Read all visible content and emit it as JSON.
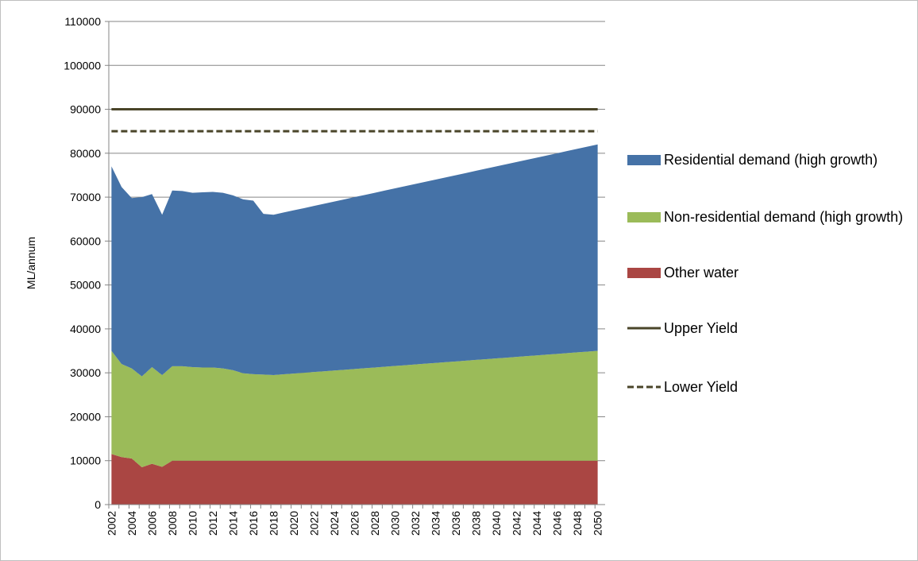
{
  "chart_data": {
    "type": "area",
    "y_label": "ML/annum",
    "categories": [
      "2002",
      null,
      "2004",
      null,
      "2006",
      null,
      "2008",
      null,
      "2010",
      null,
      "2012",
      null,
      "2014",
      null,
      "2016",
      null,
      "2018",
      null,
      "2020",
      null,
      "2022",
      null,
      "2024",
      null,
      "2026",
      null,
      "2028",
      null,
      "2030",
      null,
      "2032",
      null,
      "2034",
      null,
      "2036",
      null,
      "2038",
      null,
      "2040",
      null,
      "2042",
      null,
      "2044",
      null,
      "2046",
      null,
      "2048",
      null,
      "2050"
    ],
    "series": [
      {
        "name": "Other water",
        "color": "#aa4643",
        "values": [
          11500,
          10800,
          10500,
          8500,
          9300,
          8600,
          10000,
          10000,
          10000,
          10000,
          10000,
          10000,
          10000,
          10000,
          10000,
          10000,
          10000,
          10000,
          10000,
          10000,
          10000,
          10000,
          10000,
          10000,
          10000,
          10000,
          10000,
          10000,
          10000,
          10000,
          10000,
          10000,
          10000,
          10000,
          10000,
          10000,
          10000,
          10000,
          10000,
          10000,
          10000,
          10000,
          10000,
          10000,
          10000,
          10000,
          10000,
          10000,
          10000
        ]
      },
      {
        "name": "Non-residential demand (high growth)",
        "color": "#9bbb59",
        "values": [
          23500,
          21200,
          20500,
          20700,
          22000,
          20900,
          21500,
          21500,
          21300,
          21200,
          21200,
          21000,
          20600,
          19900,
          19700,
          19600,
          19500,
          19670,
          19840,
          20010,
          20190,
          20360,
          20530,
          20700,
          20880,
          21050,
          21220,
          21390,
          21560,
          21730,
          21910,
          22080,
          22250,
          22420,
          22590,
          22770,
          22940,
          23110,
          23280,
          23450,
          23630,
          23800,
          23970,
          24140,
          24310,
          24480,
          24660,
          24830,
          25000
        ]
      },
      {
        "name": "Residential demand (high growth)",
        "color": "#4572a7",
        "values": [
          42000,
          40300,
          38800,
          40800,
          39400,
          36500,
          40000,
          39900,
          39700,
          39900,
          40000,
          40000,
          39800,
          39600,
          39500,
          36600,
          36500,
          36830,
          37160,
          37480,
          37810,
          38140,
          38470,
          38800,
          39130,
          39450,
          39780,
          40110,
          40440,
          40770,
          41090,
          41420,
          41750,
          42080,
          42410,
          42730,
          43060,
          43390,
          43720,
          44050,
          44380,
          44700,
          45030,
          45360,
          45690,
          46020,
          46340,
          46670,
          47000
        ]
      }
    ],
    "lines": [
      {
        "name": "Upper Yield",
        "value": 90000,
        "color": "#4a4529",
        "style": "solid"
      },
      {
        "name": "Lower Yield",
        "value": 85000,
        "color": "#4a4529",
        "style": "dashed"
      }
    ],
    "ylim": [
      0,
      110000
    ],
    "yticks": [
      0,
      10000,
      20000,
      30000,
      40000,
      50000,
      60000,
      70000,
      80000,
      90000,
      100000,
      110000
    ],
    "grid": true
  }
}
